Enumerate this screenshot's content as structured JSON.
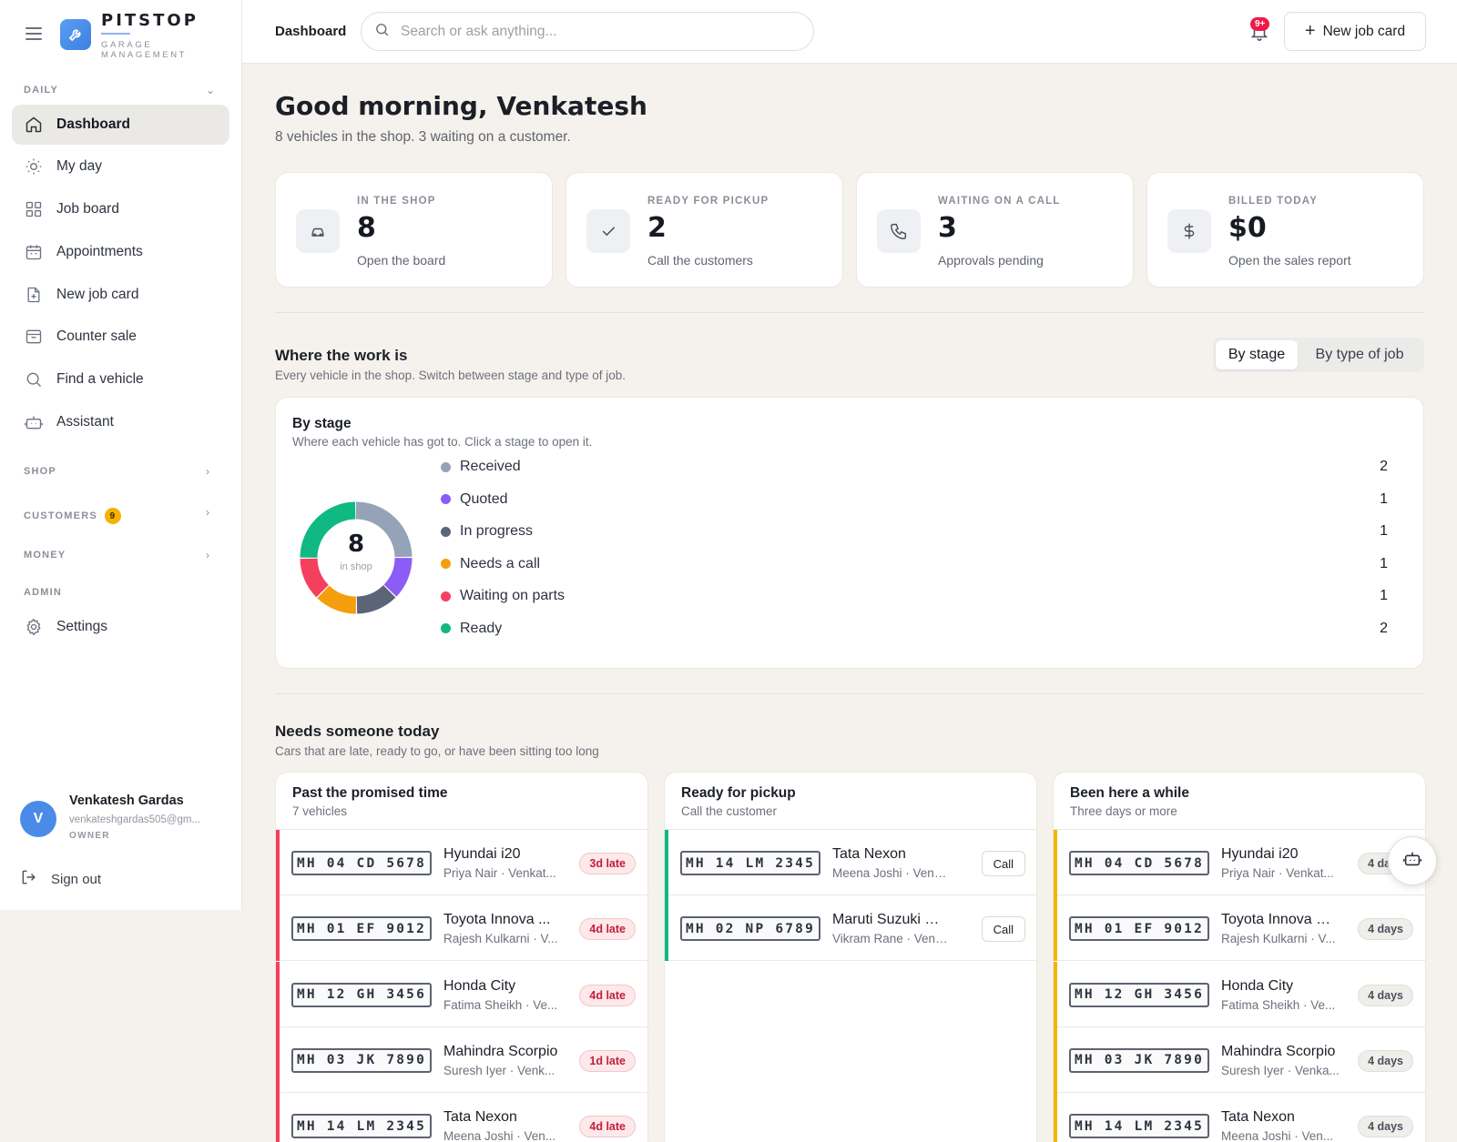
{
  "brand": {
    "name": "PITSTOP",
    "subtitle": "GARAGE MANAGEMENT"
  },
  "sidebar": {
    "daily_label": "DAILY",
    "items": [
      {
        "label": "Dashboard",
        "icon": "home-icon",
        "active": true
      },
      {
        "label": "My day",
        "icon": "sun-icon"
      },
      {
        "label": "Job board",
        "icon": "grid-icon"
      },
      {
        "label": "Appointments",
        "icon": "calendar-icon"
      },
      {
        "label": "New job card",
        "icon": "file-plus-icon"
      },
      {
        "label": "Counter sale",
        "icon": "box-icon"
      },
      {
        "label": "Find a vehicle",
        "icon": "search-icon"
      },
      {
        "label": "Assistant",
        "icon": "bot-icon"
      }
    ],
    "shop_label": "SHOP",
    "customers_label": "CUSTOMERS",
    "customers_badge": "9",
    "money_label": "MONEY",
    "admin_label": "ADMIN",
    "settings_label": "Settings"
  },
  "user": {
    "initial": "V",
    "name": "Venkatesh Gardas",
    "email": "venkateshgardas505@gm...",
    "role": "OWNER",
    "signout": "Sign out"
  },
  "topbar": {
    "title": "Dashboard",
    "search_placeholder": "Search or ask anything...",
    "notif_badge": "9+",
    "new_job_label": "New job card"
  },
  "greeting": {
    "title": "Good morning, Venkatesh",
    "subtitle": "8 vehicles in the shop. 3 waiting on a customer."
  },
  "stats": [
    {
      "label": "IN THE SHOP",
      "value": "8",
      "link": "Open the board",
      "icon": "car-icon"
    },
    {
      "label": "READY FOR PICKUP",
      "value": "2",
      "link": "Call the customers",
      "icon": "check-icon"
    },
    {
      "label": "WAITING ON A CALL",
      "value": "3",
      "link": "Approvals pending",
      "icon": "phone-icon"
    },
    {
      "label": "BILLED TODAY",
      "value": "$0",
      "link": "Open the sales report",
      "icon": "dollar-icon"
    }
  ],
  "work": {
    "title": "Where the work is",
    "subtitle": "Every vehicle in the shop. Switch between stage and type of job.",
    "toggle_on": "By stage",
    "toggle_off": "By type of job",
    "card_title": "By stage",
    "card_subtitle": "Where each vehicle has got to. Click a stage to open it.",
    "total": "8",
    "total_caption": "in shop",
    "stages": [
      {
        "name": "Received",
        "count": 2,
        "color": "#94a3b8"
      },
      {
        "name": "Quoted",
        "count": 1,
        "color": "#8b5cf6"
      },
      {
        "name": "In progress",
        "count": 1,
        "color": "#5b6478"
      },
      {
        "name": "Needs a call",
        "count": 1,
        "color": "#f59e0b"
      },
      {
        "name": "Waiting on parts",
        "count": 1,
        "color": "#f43f5e"
      },
      {
        "name": "Ready",
        "count": 2,
        "color": "#10b981"
      }
    ]
  },
  "today": {
    "title": "Needs someone today",
    "subtitle": "Cars that are late, ready to go, or have been sitting too long",
    "columns": [
      {
        "title": "Past the promised time",
        "subtitle": "7 vehicles",
        "accent": "#f43f5e",
        "kind": "late",
        "rows": [
          {
            "plate": "MH 04 CD 5678",
            "car": "Hyundai i20",
            "owner": "Priya Nair · Venkat...",
            "tag": "3d late"
          },
          {
            "plate": "MH 01 EF 9012",
            "car": "Toyota Innova ...",
            "owner": "Rajesh Kulkarni · V...",
            "tag": "4d late"
          },
          {
            "plate": "MH 12 GH 3456",
            "car": "Honda City",
            "owner": "Fatima Sheikh · Ve...",
            "tag": "4d late"
          },
          {
            "plate": "MH 03 JK 7890",
            "car": "Mahindra Scorpio",
            "owner": "Suresh Iyer · Venk...",
            "tag": "1d late"
          },
          {
            "plate": "MH 14 LM 2345",
            "car": "Tata Nexon",
            "owner": "Meena Joshi · Ven...",
            "tag": "4d late"
          }
        ]
      },
      {
        "title": "Ready for pickup",
        "subtitle": "Call the customer",
        "accent": "#10b981",
        "kind": "call",
        "rows": [
          {
            "plate": "MH 14 LM 2345",
            "car": "Tata Nexon",
            "owner": "Meena Joshi · Venkat...",
            "tag": "Call"
          },
          {
            "plate": "MH 02 NP 6789",
            "car": "Maruti Suzuki Bal...",
            "owner": "Vikram Rane · Venkat...",
            "tag": "Call"
          }
        ]
      },
      {
        "title": "Been here a while",
        "subtitle": "Three days or more",
        "accent": "#f4b400",
        "kind": "days",
        "rows": [
          {
            "plate": "MH 04 CD 5678",
            "car": "Hyundai i20",
            "owner": "Priya Nair · Venkat...",
            "tag": "4 days"
          },
          {
            "plate": "MH 01 EF 9012",
            "car": "Toyota Innova C...",
            "owner": "Rajesh Kulkarni · V...",
            "tag": "4 days"
          },
          {
            "plate": "MH 12 GH 3456",
            "car": "Honda City",
            "owner": "Fatima Sheikh · Ve...",
            "tag": "4 days"
          },
          {
            "plate": "MH 03 JK 7890",
            "car": "Mahindra Scorpio",
            "owner": "Suresh Iyer · Venka...",
            "tag": "4 days"
          },
          {
            "plate": "MH 14 LM 2345",
            "car": "Tata Nexon",
            "owner": "Meena Joshi · Ven...",
            "tag": "4 days"
          }
        ]
      }
    ]
  }
}
